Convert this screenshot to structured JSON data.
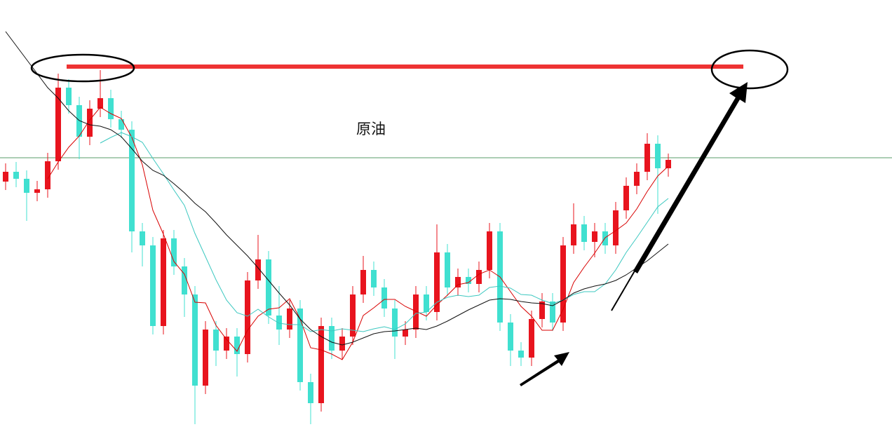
{
  "chart_data": {
    "type": "candlestick",
    "title": "原油",
    "ylim": [
      0,
      609
    ],
    "categories": [
      null,
      null,
      null,
      null,
      null,
      null,
      null,
      null,
      null,
      null,
      null,
      null,
      null,
      null,
      null,
      null,
      null,
      null,
      null,
      null,
      null,
      null,
      null,
      null,
      null,
      null,
      null,
      null,
      null,
      null,
      null,
      null,
      null,
      null,
      null,
      null,
      null,
      null,
      null,
      null,
      null,
      null,
      null,
      null,
      null,
      null,
      null,
      null,
      null,
      null,
      null,
      null,
      null,
      null,
      null,
      null,
      null,
      null,
      null,
      null,
      null,
      null,
      null,
      null
    ],
    "up_color": "#e8141e",
    "down_color": "#40e0d0",
    "open": [
      350,
      364,
      354,
      334,
      339,
      379,
      484,
      459,
      414,
      454,
      469,
      439,
      424,
      279,
      259,
      144,
      269,
      229,
      189,
      59,
      139,
      109,
      129,
      104,
      209,
      239,
      159,
      139,
      169,
      64,
      34,
      144,
      109,
      129,
      189,
      224,
      199,
      169,
      129,
      139,
      189,
      164,
      249,
      199,
      214,
      204,
      224,
      279,
      149,
      109,
      99,
      154,
      179,
      149,
      259,
      289,
      264,
      279,
      259,
      309,
      344,
      364,
      404,
      369
    ],
    "high": [
      376,
      378,
      366,
      351,
      391,
      504,
      496,
      471,
      466,
      509,
      481,
      451,
      436,
      291,
      271,
      281,
      281,
      241,
      201,
      151,
      151,
      141,
      141,
      221,
      274,
      251,
      201,
      181,
      181,
      76,
      156,
      156,
      141,
      201,
      244,
      236,
      211,
      181,
      151,
      201,
      201,
      289,
      261,
      226,
      226,
      236,
      291,
      291,
      161,
      121,
      166,
      191,
      191,
      271,
      319,
      301,
      291,
      291,
      321,
      356,
      376,
      419,
      416,
      390
    ],
    "low": [
      338,
      342,
      294,
      322,
      327,
      367,
      447,
      382,
      402,
      442,
      427,
      412,
      249,
      229,
      132,
      132,
      217,
      157,
      4,
      47,
      87,
      97,
      72,
      92,
      197,
      147,
      117,
      127,
      52,
      4,
      22,
      97,
      97,
      117,
      177,
      187,
      157,
      97,
      117,
      127,
      152,
      152,
      187,
      187,
      192,
      192,
      212,
      137,
      87,
      87,
      87,
      142,
      137,
      137,
      247,
      252,
      242,
      247,
      247,
      297,
      332,
      352,
      304,
      357
    ],
    "close": [
      364,
      354,
      334,
      339,
      379,
      484,
      459,
      414,
      454,
      469,
      439,
      424,
      279,
      259,
      144,
      269,
      229,
      189,
      59,
      139,
      109,
      129,
      104,
      209,
      239,
      159,
      139,
      169,
      64,
      34,
      144,
      109,
      129,
      189,
      224,
      199,
      169,
      129,
      139,
      189,
      164,
      249,
      199,
      214,
      204,
      224,
      279,
      149,
      109,
      99,
      154,
      179,
      149,
      259,
      289,
      264,
      279,
      259,
      309,
      344,
      364,
      404,
      369,
      381
    ],
    "series": [
      {
        "color": "#d80000",
        "values": [
          null,
          null,
          null,
          null,
          354,
          378,
          399,
          415,
          438,
          456,
          447,
          440,
          413,
          374,
          309,
          275,
          236,
          218,
          178,
          177,
          145,
          125,
          108,
          138,
          158,
          168,
          170,
          183,
          154,
          113,
          110,
          104,
          96,
          121,
          159,
          170,
          182,
          182,
          172,
          165,
          158,
          174,
          188,
          203,
          206,
          218,
          224,
          214,
          193,
          172,
          158,
          138,
          138,
          168,
          206,
          228,
          248,
          270,
          280,
          291,
          311,
          336,
          358,
          372
        ]
      },
      {
        "color": "#3cc8c0",
        "values": [
          null,
          null,
          null,
          null,
          null,
          null,
          null,
          null,
          null,
          405,
          413,
          420,
          414,
          406,
          383,
          361,
          338,
          316,
          276,
          243,
          210,
          181,
          163,
          158,
          168,
          157,
          148,
          146,
          146,
          136,
          139,
          137,
          140,
          138,
          136,
          140,
          143,
          139,
          147,
          162,
          164,
          178,
          185,
          188,
          186,
          188,
          199,
          201,
          198,
          189,
          188,
          181,
          176,
          181,
          189,
          193,
          193,
          204,
          224,
          249,
          270,
          292,
          314,
          326
        ]
      },
      {
        "color": "#111111",
        "values": [
          564,
          544,
          524,
          504,
          484,
          469,
          451,
          437,
          431,
          429,
          424,
          414,
          397,
          379,
          366,
          359,
          347,
          334,
          319,
          307,
          291,
          274,
          259,
          244,
          227,
          209,
          191,
          174,
          154,
          139,
          129,
          121,
          117,
          121,
          127,
          133,
          136,
          137,
          139,
          141,
          139,
          144,
          151,
          159,
          167,
          174,
          181,
          183,
          182,
          179,
          177,
          176,
          173,
          181,
          191,
          197,
          201,
          204,
          209,
          217,
          227,
          237,
          249,
          261
        ]
      }
    ],
    "hlines": [
      {
        "value": 514,
        "color": "#ee3333"
      },
      {
        "value": 384,
        "color": "#5a9e6a"
      }
    ]
  }
}
